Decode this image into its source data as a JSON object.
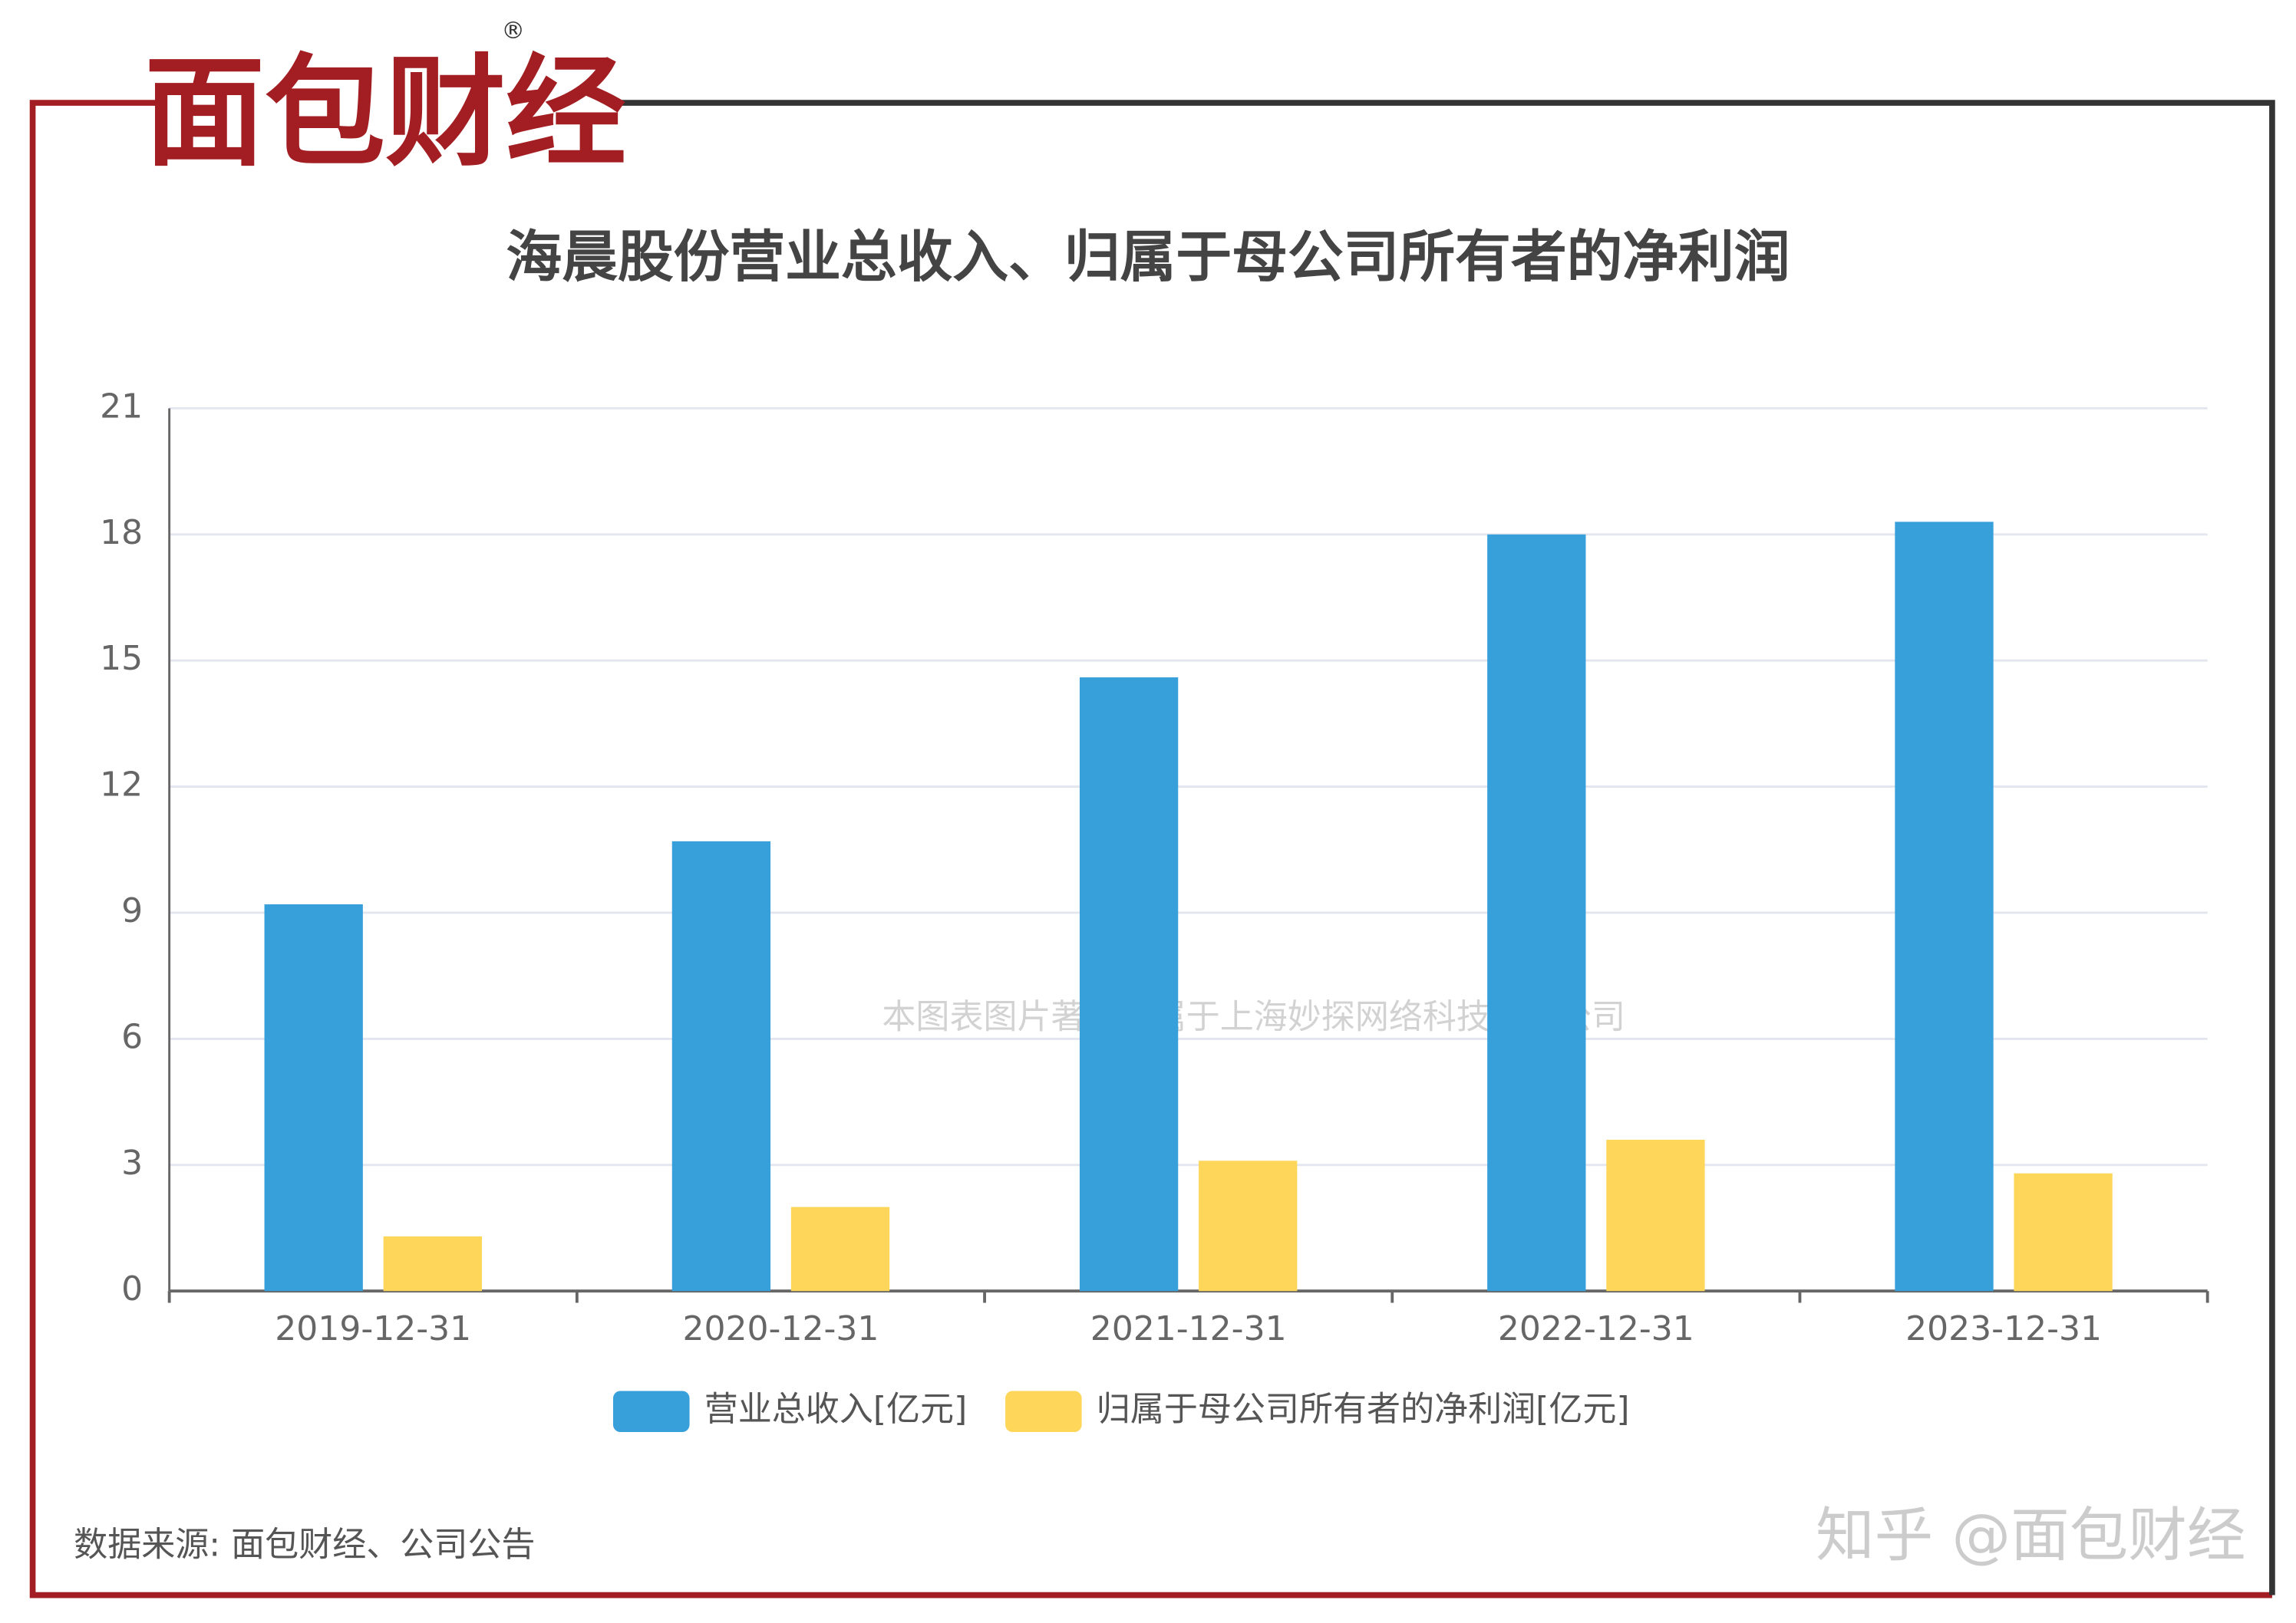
{
  "logo": "面包财经",
  "source": "数据来源: 面包财经、公司公告",
  "watermark": "知乎 @面包财经",
  "copyright": "本图表图片著作权属于上海妙探网络科技有限公司",
  "chart_data": {
    "type": "bar",
    "title": "海晨股份营业总收入、归属于母公司所有者的净利润",
    "categories": [
      "2019-12-31",
      "2020-12-31",
      "2021-12-31",
      "2022-12-31",
      "2023-12-31"
    ],
    "series": [
      {
        "name": "营业总收入[亿元]",
        "color": "#379fd9",
        "values": [
          9.2,
          10.7,
          14.6,
          18.0,
          18.3
        ]
      },
      {
        "name": "归属于母公司所有者的净利润[亿元]",
        "color": "#fed75a",
        "values": [
          1.3,
          2.0,
          3.1,
          3.6,
          2.8
        ]
      }
    ],
    "ylim": [
      0,
      21
    ],
    "yticks": [
      0,
      3,
      6,
      9,
      12,
      15,
      18,
      21
    ],
    "grid": true
  }
}
